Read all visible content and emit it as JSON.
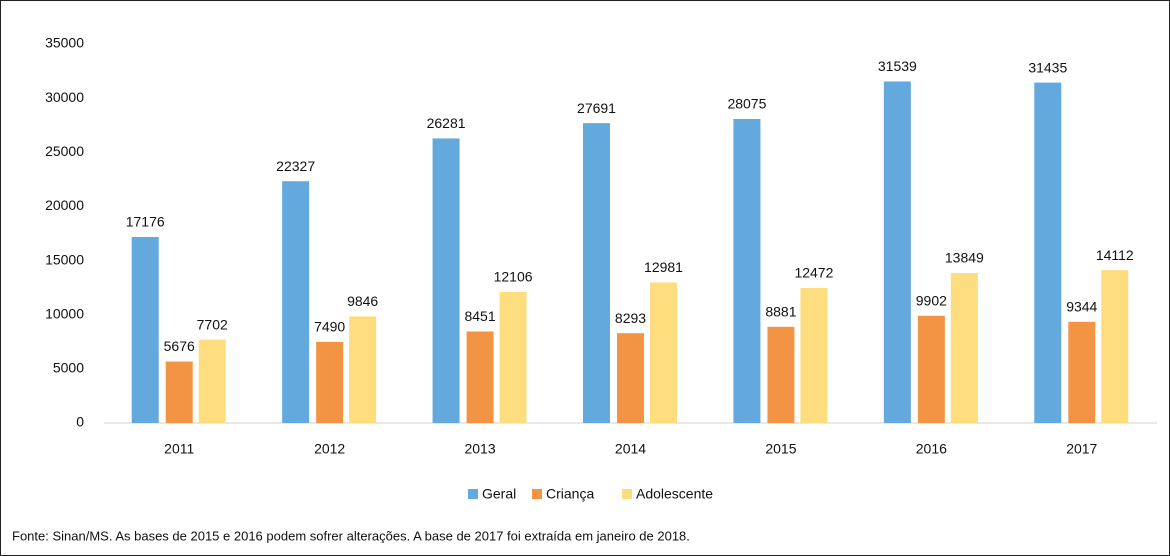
{
  "chart_data": {
    "type": "bar",
    "categories": [
      "2011",
      "2012",
      "2013",
      "2014",
      "2015",
      "2016",
      "2017"
    ],
    "series": [
      {
        "name": "Geral",
        "color": "#64a9de",
        "values": [
          17176,
          22327,
          26281,
          27691,
          28075,
          31539,
          31435
        ]
      },
      {
        "name": "Criança",
        "color": "#f39445",
        "values": [
          5676,
          7490,
          8451,
          8293,
          8881,
          9902,
          9344
        ]
      },
      {
        "name": "Adolescente",
        "color": "#fedd7e",
        "values": [
          7702,
          9846,
          12106,
          12981,
          12472,
          13849,
          14112
        ]
      }
    ],
    "ylim": [
      0,
      35000
    ],
    "yticks": [
      0,
      5000,
      10000,
      15000,
      20000,
      25000,
      30000,
      35000
    ],
    "grid": false,
    "legend": "bottom",
    "source": "Fonte: Sinan/MS. As bases de 2015 e 2016 podem sofrer alterações. A base de 2017 foi extraída em janeiro de 2018."
  }
}
